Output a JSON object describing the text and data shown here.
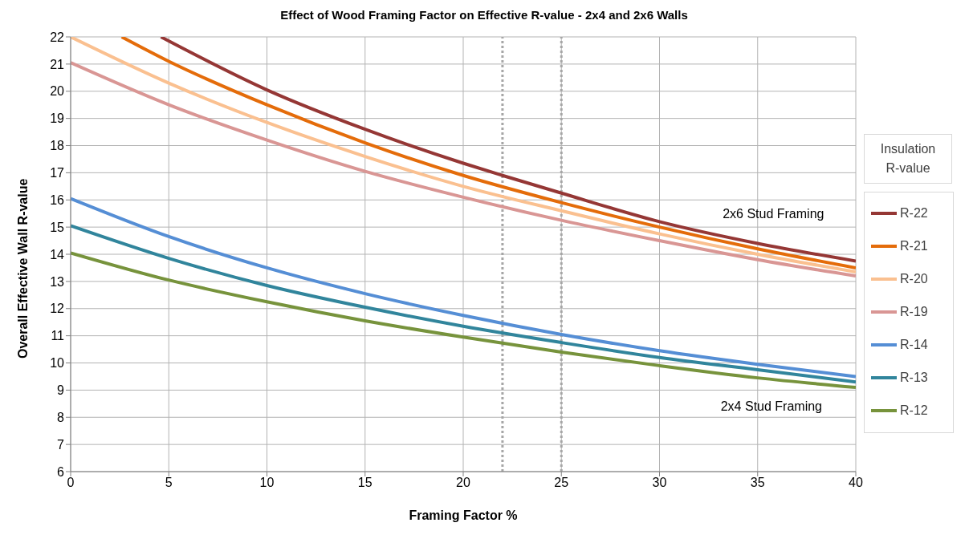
{
  "chart_data": {
    "type": "line",
    "title": "Effect of Wood Framing Factor on Effective R-value - 2x4 and 2x6 Walls",
    "xlabel": "Framing Factor %",
    "ylabel": "Overall Effective Wall R-value",
    "legend_title": "Insulation R-value",
    "legend": "right",
    "grid": true,
    "marker": "none",
    "line_style": "solid",
    "xlim": [
      0,
      40
    ],
    "xticks": [
      0,
      5,
      10,
      15,
      20,
      25,
      30,
      35,
      40
    ],
    "ylim": [
      6,
      22
    ],
    "yticks": [
      6,
      7,
      8,
      9,
      10,
      11,
      12,
      13,
      14,
      15,
      16,
      17,
      18,
      19,
      20,
      21,
      22
    ],
    "ref_lines": [
      {
        "axis": "x",
        "value": 22,
        "label": null,
        "color": "#a6a6a6",
        "line_style": "dotted"
      },
      {
        "axis": "x",
        "value": 25,
        "label": null,
        "color": "#a6a6a6",
        "line_style": "dotted"
      }
    ],
    "annotations": [
      "2x6 Stud Framing",
      "2x4 Stud Framing"
    ],
    "series": [
      {
        "name": "R-22",
        "color": "#953735",
        "x": [
          4.6,
          10,
          15,
          20,
          22,
          25,
          30,
          35,
          40
        ],
        "values": [
          22,
          20.05,
          18.6,
          17.35,
          16.9,
          16.25,
          15.2,
          14.4,
          13.75
        ]
      },
      {
        "name": "R-21",
        "color": "#e46c0a",
        "x": [
          2.6,
          5,
          10,
          15,
          20,
          25,
          30,
          35,
          40
        ],
        "values": [
          22,
          21.1,
          19.5,
          18.1,
          16.9,
          15.9,
          15.0,
          14.2,
          13.5
        ]
      },
      {
        "name": "R-20",
        "color": "#fac090",
        "x": [
          0,
          5,
          10,
          15,
          20,
          25,
          30,
          35,
          40
        ],
        "values": [
          22,
          20.3,
          18.85,
          17.6,
          16.5,
          15.6,
          14.75,
          14.0,
          13.35
        ]
      },
      {
        "name": "R-19",
        "color": "#d99694",
        "x": [
          0,
          5,
          10,
          15,
          20,
          25,
          30,
          35,
          40
        ],
        "values": [
          21.05,
          19.5,
          18.2,
          17.05,
          16.1,
          15.25,
          14.5,
          13.8,
          13.2
        ]
      },
      {
        "name": "R-14",
        "color": "#558ed5",
        "x": [
          0,
          5,
          10,
          15,
          20,
          25,
          30,
          35,
          40
        ],
        "values": [
          16.05,
          14.65,
          13.5,
          12.55,
          11.75,
          11.05,
          10.45,
          9.95,
          9.5
        ]
      },
      {
        "name": "R-13",
        "color": "#31859c",
        "x": [
          0,
          5,
          10,
          15,
          20,
          25,
          30,
          35,
          40
        ],
        "values": [
          15.05,
          13.85,
          12.85,
          12.05,
          11.35,
          10.75,
          10.2,
          9.75,
          9.3
        ]
      },
      {
        "name": "R-12",
        "color": "#77933c",
        "x": [
          0,
          5,
          10,
          15,
          20,
          25,
          30,
          35,
          40
        ],
        "values": [
          14.05,
          13.05,
          12.25,
          11.55,
          10.95,
          10.4,
          9.9,
          9.45,
          9.1
        ]
      }
    ]
  }
}
